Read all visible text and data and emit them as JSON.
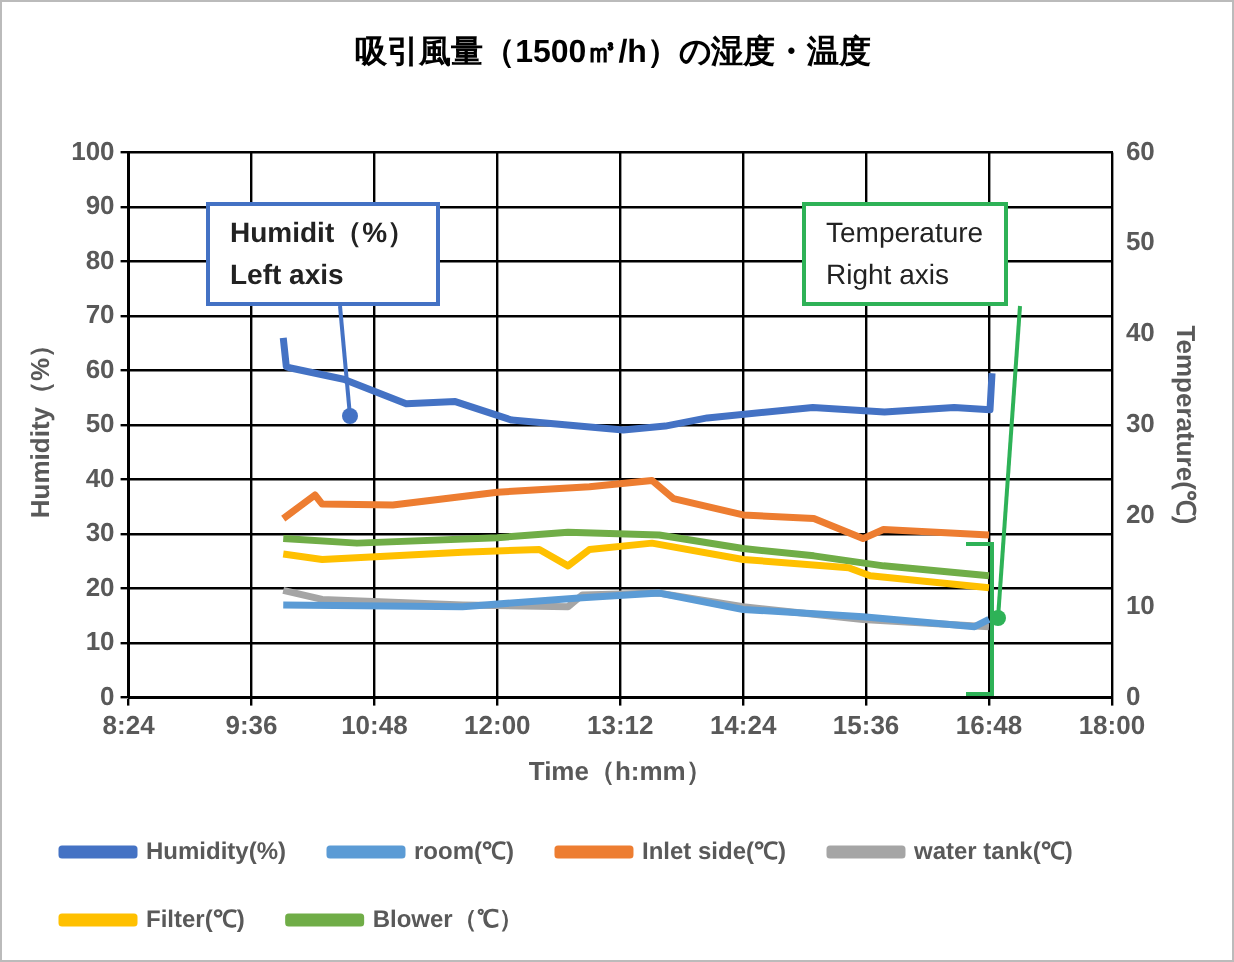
{
  "chart_data": {
    "type": "line",
    "title": "吸引風量（1500㎥/h）の湿度・温度",
    "xlabel": "Time（h:mm）",
    "ylabel": "Humidity（%）",
    "y2label": "Temperature(℃)",
    "xlim": [
      8.4,
      18
    ],
    "xticks": [
      {
        "value": 8.4,
        "label": "8:24"
      },
      {
        "value": 9.6,
        "label": "9:36"
      },
      {
        "value": 10.8,
        "label": "10:48"
      },
      {
        "value": 12,
        "label": "12:00"
      },
      {
        "value": 13.2,
        "label": "13:12"
      },
      {
        "value": 14.4,
        "label": "14:24"
      },
      {
        "value": 15.6,
        "label": "15:36"
      },
      {
        "value": 16.8,
        "label": "16:48"
      },
      {
        "value": 18,
        "label": "18:00"
      }
    ],
    "ylim": [
      0,
      100
    ],
    "yticks": [
      0,
      10,
      20,
      30,
      40,
      50,
      60,
      70,
      80,
      90,
      100
    ],
    "y2lim": [
      0,
      60
    ],
    "y2ticks": [
      0,
      10,
      20,
      30,
      40,
      50,
      60
    ],
    "grid": true,
    "legend": "bottom",
    "marker": "none",
    "line_style": "solid",
    "annotations": [
      "Humidit（%）\nLeft axis",
      "Temperature\nRight axis"
    ],
    "series": [
      {
        "name": "Humidity(%)",
        "color": "#4472c4",
        "x": [
          9.91,
          9.94,
          9.97,
          10.5,
          11.11,
          11.59,
          12.14,
          13.23,
          13.64,
          14.05,
          15.08,
          15.78,
          16.46,
          16.81,
          16.83
        ],
        "values": [
          66,
          60.7,
          60.5,
          58.4,
          53.9,
          54.3,
          50.9,
          49.1,
          49.8,
          51.3,
          53.2,
          52.4,
          53.2,
          52.8,
          59.5
        ]
      },
      {
        "name": "room(℃)",
        "color": "#5b9bd5",
        "axis": "y2",
        "x": [
          9.91,
          11.66,
          12.83,
          13.58,
          14.4,
          15.57,
          16.66,
          16.8
        ],
        "values": [
          10.2,
          10.0,
          11.0,
          11.5,
          9.7,
          8.9,
          7.8,
          8.6
        ]
      },
      {
        "name": "Inlet side(℃)",
        "color": "#ed7d31",
        "axis": "y2",
        "x": [
          9.91,
          10.22,
          10.29,
          10.98,
          12.0,
          12.9,
          13.51,
          13.72,
          14.4,
          15.09,
          15.57,
          15.77,
          16.8
        ],
        "values": [
          19.7,
          22.3,
          21.3,
          21.2,
          22.6,
          23.2,
          23.9,
          21.9,
          20.1,
          19.7,
          17.5,
          18.5,
          17.9
        ]
      },
      {
        "name": "water tank(℃)",
        "color": "#a5a5a5",
        "axis": "y2",
        "x": [
          9.91,
          10.29,
          11.66,
          12.69,
          12.83,
          13.58,
          14.4,
          15.57,
          16.8
        ],
        "values": [
          11.8,
          10.8,
          10.2,
          10.0,
          11.3,
          11.5,
          10.0,
          8.6,
          7.8
        ]
      },
      {
        "name": "Filter(℃)",
        "color": "#ffc000",
        "axis": "y2",
        "x": [
          9.91,
          10.29,
          11.66,
          12.41,
          12.69,
          12.9,
          13.51,
          14.4,
          15.43,
          15.64,
          16.8
        ],
        "values": [
          15.8,
          15.2,
          16.0,
          16.3,
          14.5,
          16.3,
          17.0,
          15.2,
          14.3,
          13.4,
          12.1
        ]
      },
      {
        "name": "Blower（℃）",
        "color": "#70ad47",
        "axis": "y2",
        "x": [
          9.91,
          10.63,
          12.0,
          12.69,
          13.58,
          14.4,
          15.09,
          15.77,
          16.8
        ],
        "values": [
          17.5,
          17.0,
          17.6,
          18.2,
          17.9,
          16.4,
          15.6,
          14.5,
          13.4
        ]
      }
    ]
  }
}
